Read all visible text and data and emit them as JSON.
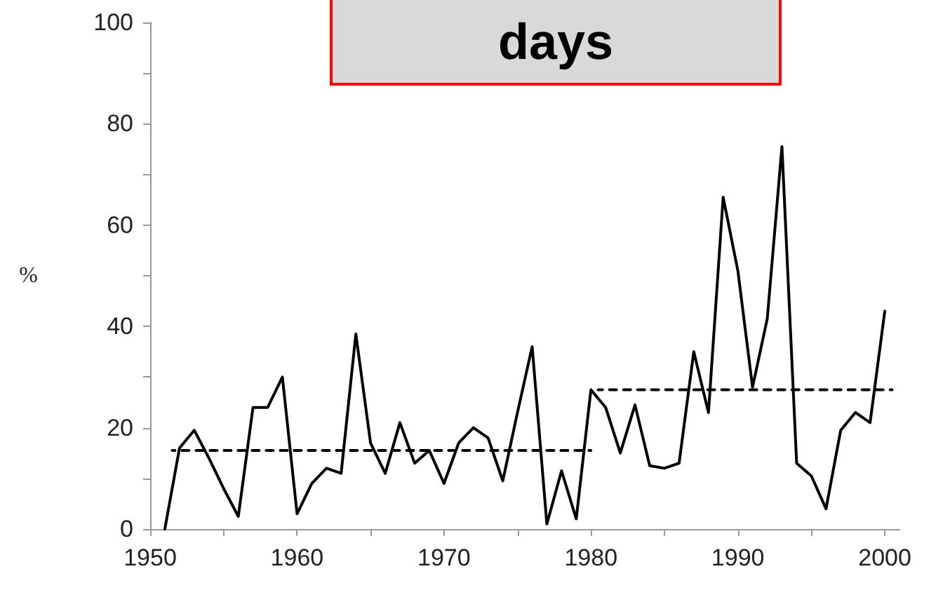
{
  "chart_data": {
    "type": "line",
    "title": "days",
    "ylabel": "%",
    "x": [
      1951,
      1952,
      1953,
      1954,
      1955,
      1956,
      1957,
      1958,
      1959,
      1960,
      1961,
      1962,
      1963,
      1964,
      1965,
      1966,
      1967,
      1968,
      1969,
      1970,
      1971,
      1972,
      1973,
      1974,
      1975,
      1976,
      1977,
      1978,
      1979,
      1980,
      1981,
      1982,
      1983,
      1984,
      1985,
      1986,
      1987,
      1988,
      1989,
      1990,
      1991,
      1992,
      1993,
      1994,
      1995,
      1996,
      1997,
      1998,
      1999,
      2000
    ],
    "series": [
      {
        "color": "#000000",
        "line_style": "solid",
        "values": [
          0,
          16,
          19.5,
          14,
          8,
          2.5,
          24,
          24,
          30,
          3,
          9,
          12,
          11,
          38.5,
          17,
          11,
          21,
          13,
          15.5,
          9,
          17,
          20,
          18,
          9.5,
          23,
          36,
          1,
          11.5,
          2,
          27.5,
          24,
          15,
          24.5,
          12.5,
          12,
          13,
          35,
          23,
          65.5,
          51,
          28,
          41.5,
          75.5,
          13,
          10.5,
          4,
          19.5,
          23,
          21,
          43
        ]
      },
      {
        "color": "#000000",
        "line_style": "dashed",
        "x": [
          1951.5,
          1980
        ],
        "values": [
          15.5,
          15.5
        ]
      },
      {
        "color": "#000000",
        "line_style": "dashed",
        "x": [
          1980.5,
          2000.5
        ],
        "values": [
          27.5,
          27.5
        ]
      }
    ],
    "xlim": [
      1950,
      2001
    ],
    "xticks": [
      1950,
      {
        "value": 1955,
        "label": null
      },
      1960,
      {
        "value": 1965,
        "label": null
      },
      1970,
      {
        "value": 1975,
        "label": null
      },
      1980,
      {
        "value": 1985,
        "label": null
      },
      1990,
      {
        "value": 1995,
        "label": null
      },
      2000
    ],
    "ylim": [
      0,
      100
    ],
    "yticks": [
      0,
      {
        "value": 10,
        "label": null
      },
      20,
      {
        "value": 30,
        "label": null
      },
      40,
      {
        "value": 50,
        "label": null
      },
      60,
      {
        "value": 70,
        "label": null
      },
      80,
      {
        "value": 90,
        "label": null
      },
      100
    ],
    "grid": false,
    "marker": "none"
  }
}
